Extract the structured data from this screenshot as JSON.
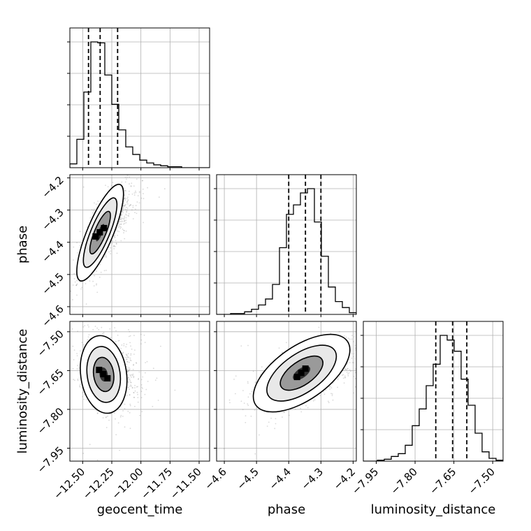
{
  "chart_data": {
    "type": "corner",
    "parameters": [
      "geocent_time",
      "phase",
      "luminosity_distance"
    ],
    "axis_labels": {
      "geocent_time": "geocent_time",
      "phase": "phase",
      "luminosity_distance": "luminosity_distance"
    },
    "ranges": {
      "geocent_time": [
        -12.61,
        -11.41
      ],
      "phase": [
        -4.624,
        -4.19
      ],
      "luminosity_distance": [
        -8.0,
        -7.46
      ]
    },
    "ticks": {
      "geocent_time": [
        {
          "v": -12.5,
          "label": "−12.50"
        },
        {
          "v": -12.25,
          "label": "−12.25"
        },
        {
          "v": -12.0,
          "label": "−12.00"
        },
        {
          "v": -11.75,
          "label": "−11.75"
        },
        {
          "v": -11.5,
          "label": "−11.50"
        }
      ],
      "phase": [
        {
          "v": -4.6,
          "label": "−4.6"
        },
        {
          "v": -4.5,
          "label": "−4.5"
        },
        {
          "v": -4.4,
          "label": "−4.4"
        },
        {
          "v": -4.3,
          "label": "−4.3"
        },
        {
          "v": -4.2,
          "label": "−4.2"
        }
      ],
      "luminosity_distance": [
        {
          "v": -7.95,
          "label": "−7.95"
        },
        {
          "v": -7.8,
          "label": "−7.80"
        },
        {
          "v": -7.65,
          "label": "−7.65"
        },
        {
          "v": -7.5,
          "label": "−7.50"
        }
      ]
    },
    "histograms": {
      "geocent_time": {
        "bins": [
          -12.61,
          -12.55,
          -12.49,
          -12.43,
          -12.37,
          -12.31,
          -12.25,
          -12.19,
          -12.13,
          -12.07,
          -12.01,
          -11.95,
          -11.89,
          -11.83,
          -11.77,
          -11.71,
          -11.65,
          -11.59,
          -11.53,
          -11.47,
          -11.41
        ],
        "counts": [
          4,
          30,
          80,
          133,
          132,
          98,
          67,
          40,
          22,
          14,
          8,
          5,
          3,
          2,
          1,
          1,
          0,
          0,
          0,
          0
        ]
      },
      "phase": {
        "bins": [
          -4.624,
          -4.6023,
          -4.5806,
          -4.5589,
          -4.5372,
          -4.5155,
          -4.4938,
          -4.4721,
          -4.4504,
          -4.4287,
          -4.407,
          -4.3853,
          -4.3636,
          -4.3419,
          -4.3202,
          -4.2985,
          -4.2768,
          -4.2551,
          -4.2334,
          -4.2117,
          -4.19
        ],
        "counts": [
          0,
          0,
          1,
          1,
          3,
          6,
          11,
          18,
          35,
          78,
          117,
          128,
          142,
          147,
          108,
          68,
          32,
          15,
          8,
          2
        ]
      },
      "luminosity_distance": {
        "bins": [
          -8.0,
          -7.973,
          -7.946,
          -7.919,
          -7.892,
          -7.865,
          -7.838,
          -7.811,
          -7.784,
          -7.757,
          -7.73,
          -7.703,
          -7.676,
          -7.649,
          -7.622,
          -7.595,
          -7.568,
          -7.541,
          -7.514,
          -7.487,
          -7.46
        ],
        "counts": [
          0,
          0,
          1,
          2,
          5,
          8,
          17,
          38,
          56,
          81,
          104,
          135,
          130,
          118,
          88,
          60,
          30,
          10,
          3,
          1
        ]
      }
    },
    "quantiles": {
      "geocent_time": [
        -12.45,
        -12.35,
        -12.2
      ],
      "phase": [
        -4.4,
        -4.348,
        -4.3
      ],
      "luminosity_distance": [
        -7.72,
        -7.655,
        -7.6
      ]
    },
    "posterior_2d": [
      {
        "x": "geocent_time",
        "y": "phase",
        "mean": [
          -12.35,
          -4.37
        ],
        "sd": [
          0.08,
          0.06
        ],
        "corr": 0.8
      },
      {
        "x": "geocent_time",
        "y": "luminosity_distance",
        "mean": [
          -12.32,
          -7.665
        ],
        "sd": [
          0.08,
          0.06
        ],
        "corr": -0.15
      },
      {
        "x": "phase",
        "y": "luminosity_distance",
        "mean": [
          -4.36,
          -7.66
        ],
        "sd": [
          0.06,
          0.06
        ],
        "corr": 0.6
      }
    ],
    "grid": true
  }
}
